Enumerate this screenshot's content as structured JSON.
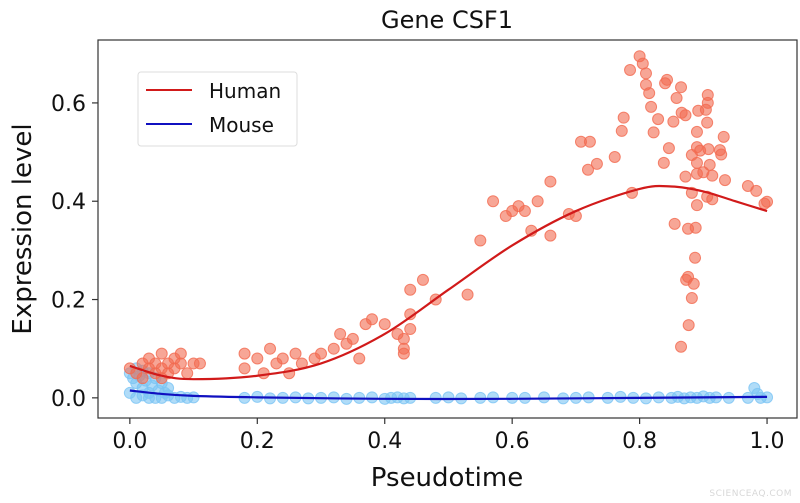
{
  "chart_data": {
    "type": "scatter",
    "title": "Gene CSF1",
    "xlabel": "Pseudotime",
    "ylabel": "Expression level",
    "xlim": [
      -0.05,
      1.047
    ],
    "ylim": [
      -0.041,
      0.728
    ],
    "xticks": [
      0.0,
      0.2,
      0.4,
      0.6,
      0.8,
      1.0
    ],
    "xtick_labels": [
      "0.0",
      "0.2",
      "0.4",
      "0.6",
      "0.8",
      "1.0"
    ],
    "yticks": [
      0.0,
      0.2,
      0.4,
      0.6
    ],
    "ytick_labels": [
      "0.0",
      "0.2",
      "0.4",
      "0.6"
    ],
    "grid": false,
    "legend_placement": "upper-left",
    "series": [
      {
        "name": "Human",
        "line_color": "#d11a1a",
        "point_color": "#f26a50",
        "points": [
          [
            0.0,
            0.06
          ],
          [
            0.01,
            0.05
          ],
          [
            0.02,
            0.07
          ],
          [
            0.03,
            0.06
          ],
          [
            0.03,
            0.08
          ],
          [
            0.04,
            0.05
          ],
          [
            0.04,
            0.07
          ],
          [
            0.05,
            0.09
          ],
          [
            0.05,
            0.06
          ],
          [
            0.06,
            0.07
          ],
          [
            0.06,
            0.05
          ],
          [
            0.07,
            0.08
          ],
          [
            0.07,
            0.06
          ],
          [
            0.08,
            0.07
          ],
          [
            0.09,
            0.05
          ],
          [
            0.1,
            0.07
          ],
          [
            0.11,
            0.07
          ],
          [
            0.02,
            0.04
          ],
          [
            0.05,
            0.04
          ],
          [
            0.08,
            0.09
          ],
          [
            0.18,
            0.09
          ],
          [
            0.18,
            0.06
          ],
          [
            0.2,
            0.08
          ],
          [
            0.21,
            0.05
          ],
          [
            0.22,
            0.1
          ],
          [
            0.23,
            0.07
          ],
          [
            0.24,
            0.08
          ],
          [
            0.25,
            0.05
          ],
          [
            0.26,
            0.09
          ],
          [
            0.27,
            0.07
          ],
          [
            0.29,
            0.08
          ],
          [
            0.3,
            0.09
          ],
          [
            0.32,
            0.1
          ],
          [
            0.33,
            0.13
          ],
          [
            0.34,
            0.11
          ],
          [
            0.35,
            0.12
          ],
          [
            0.36,
            0.08
          ],
          [
            0.37,
            0.15
          ],
          [
            0.38,
            0.16
          ],
          [
            0.4,
            0.15
          ],
          [
            0.42,
            0.13
          ],
          [
            0.43,
            0.1
          ],
          [
            0.43,
            0.12
          ],
          [
            0.43,
            0.09
          ],
          [
            0.44,
            0.14
          ],
          [
            0.44,
            0.17
          ],
          [
            0.44,
            0.22
          ],
          [
            0.46,
            0.24
          ],
          [
            0.48,
            0.2
          ],
          [
            0.53,
            0.21
          ],
          [
            0.55,
            0.32
          ],
          [
            0.57,
            0.4
          ],
          [
            0.59,
            0.37
          ],
          [
            0.6,
            0.38
          ],
          [
            0.61,
            0.39
          ],
          [
            0.62,
            0.38
          ],
          [
            0.63,
            0.34
          ],
          [
            0.64,
            0.4
          ],
          [
            0.66,
            0.44
          ],
          [
            0.66,
            0.33
          ],
          [
            0.7,
            0.37
          ],
          [
            0.8,
            0.695
          ],
          [
            0.805,
            0.68
          ],
          [
            0.785,
            0.667
          ],
          [
            0.81,
            0.66
          ],
          [
            0.81,
            0.637
          ],
          [
            0.815,
            0.62
          ],
          [
            0.843,
            0.647
          ],
          [
            0.84,
            0.64
          ],
          [
            0.865,
            0.632
          ],
          [
            0.858,
            0.61
          ],
          [
            0.907,
            0.616
          ],
          [
            0.907,
            0.6
          ],
          [
            0.818,
            0.592
          ],
          [
            0.829,
            0.567
          ],
          [
            0.775,
            0.57
          ],
          [
            0.772,
            0.543
          ],
          [
            0.822,
            0.54
          ],
          [
            0.853,
            0.562
          ],
          [
            0.866,
            0.58
          ],
          [
            0.872,
            0.575
          ],
          [
            0.892,
            0.584
          ],
          [
            0.904,
            0.586
          ],
          [
            0.906,
            0.56
          ],
          [
            0.89,
            0.541
          ],
          [
            0.932,
            0.531
          ],
          [
            0.708,
            0.521
          ],
          [
            0.722,
            0.521
          ],
          [
            0.761,
            0.49
          ],
          [
            0.733,
            0.476
          ],
          [
            0.719,
            0.464
          ],
          [
            0.846,
            0.508
          ],
          [
            0.838,
            0.478
          ],
          [
            0.89,
            0.51
          ],
          [
            0.882,
            0.494
          ],
          [
            0.895,
            0.503
          ],
          [
            0.908,
            0.506
          ],
          [
            0.926,
            0.504
          ],
          [
            0.928,
            0.495
          ],
          [
            0.89,
            0.478
          ],
          [
            0.91,
            0.474
          ],
          [
            0.872,
            0.45
          ],
          [
            0.89,
            0.456
          ],
          [
            0.9,
            0.459
          ],
          [
            0.914,
            0.452
          ],
          [
            0.934,
            0.443
          ],
          [
            0.97,
            0.431
          ],
          [
            0.983,
            0.421
          ],
          [
            1.0,
            0.399
          ],
          [
            0.996,
            0.395
          ],
          [
            0.788,
            0.417
          ],
          [
            0.882,
            0.417
          ],
          [
            0.906,
            0.409
          ],
          [
            0.914,
            0.404
          ],
          [
            0.89,
            0.392
          ],
          [
            0.689,
            0.374
          ],
          [
            0.855,
            0.354
          ],
          [
            0.876,
            0.344
          ],
          [
            0.888,
            0.346
          ],
          [
            0.887,
            0.285
          ],
          [
            0.876,
            0.246
          ],
          [
            0.873,
            0.24
          ],
          [
            0.885,
            0.232
          ],
          [
            0.882,
            0.203
          ],
          [
            0.877,
            0.148
          ],
          [
            0.865,
            0.104
          ]
        ],
        "fit": [
          [
            0,
            0.065
          ],
          [
            0.05,
            0.045
          ],
          [
            0.1,
            0.038
          ],
          [
            0.2,
            0.045
          ],
          [
            0.3,
            0.07
          ],
          [
            0.4,
            0.13
          ],
          [
            0.5,
            0.22
          ],
          [
            0.6,
            0.31
          ],
          [
            0.7,
            0.38
          ],
          [
            0.8,
            0.425
          ],
          [
            0.85,
            0.43
          ],
          [
            0.9,
            0.42
          ],
          [
            0.95,
            0.4
          ],
          [
            1.0,
            0.38
          ]
        ]
      },
      {
        "name": "Mouse",
        "line_color": "#1010c0",
        "point_color": "#7cc4f4",
        "points": [
          [
            0.0,
            0.05
          ],
          [
            0.005,
            0.04
          ],
          [
            0.01,
            0.06
          ],
          [
            0.01,
            0.03
          ],
          [
            0.015,
            0.045
          ],
          [
            0.02,
            0.055
          ],
          [
            0.02,
            0.02
          ],
          [
            0.025,
            0.035
          ],
          [
            0.03,
            0.05
          ],
          [
            0.03,
            0.01
          ],
          [
            0.035,
            0.025
          ],
          [
            0.04,
            0.04
          ],
          [
            0.045,
            0.015
          ],
          [
            0.05,
            0.03
          ],
          [
            0.055,
            0.01
          ],
          [
            0.06,
            0.02
          ],
          [
            0.0,
            0.01
          ],
          [
            0.01,
            0.0
          ],
          [
            0.02,
            0.005
          ],
          [
            0.03,
            0.0
          ],
          [
            0.04,
            0.0
          ],
          [
            0.05,
            0.0
          ],
          [
            0.06,
            0.005
          ],
          [
            0.07,
            0.0
          ],
          [
            0.08,
            0.002
          ],
          [
            0.09,
            0.0
          ],
          [
            0.1,
            0.001
          ],
          [
            0.18,
            0.0
          ],
          [
            0.2,
            0.002
          ],
          [
            0.22,
            -0.001
          ],
          [
            0.24,
            0.0
          ],
          [
            0.26,
            0.001
          ],
          [
            0.28,
            -0.001
          ],
          [
            0.3,
            0.0
          ],
          [
            0.32,
            0.001
          ],
          [
            0.34,
            -0.002
          ],
          [
            0.36,
            0.0
          ],
          [
            0.38,
            0.001
          ],
          [
            0.4,
            -0.002
          ],
          [
            0.41,
            0.0
          ],
          [
            0.42,
            0.001
          ],
          [
            0.43,
            -0.001
          ],
          [
            0.44,
            0.0
          ],
          [
            0.48,
            0.0
          ],
          [
            0.5,
            0.001
          ],
          [
            0.52,
            -0.001
          ],
          [
            0.55,
            0.0
          ],
          [
            0.57,
            0.001
          ],
          [
            0.6,
            0.0
          ],
          [
            0.62,
            0.0
          ],
          [
            0.65,
            0.001
          ],
          [
            0.68,
            -0.001
          ],
          [
            0.7,
            0.0
          ],
          [
            0.72,
            0.001
          ],
          [
            0.75,
            0.0
          ],
          [
            0.77,
            0.002
          ],
          [
            0.79,
            0.0
          ],
          [
            0.81,
            -0.001
          ],
          [
            0.83,
            0.001
          ],
          [
            0.85,
            0.0
          ],
          [
            0.86,
            0.002
          ],
          [
            0.87,
            -0.001
          ],
          [
            0.88,
            0.001
          ],
          [
            0.89,
            0.0
          ],
          [
            0.9,
            0.003
          ],
          [
            0.91,
            0.0
          ],
          [
            0.92,
            0.001
          ],
          [
            0.94,
            0.0
          ],
          [
            0.97,
            0.0
          ],
          [
            0.98,
            0.02
          ],
          [
            0.985,
            0.008
          ],
          [
            0.99,
            0.0
          ],
          [
            1.0,
            0.001
          ]
        ],
        "fit": [
          [
            0,
            0.015
          ],
          [
            0.05,
            0.008
          ],
          [
            0.1,
            0.004
          ],
          [
            0.2,
            0.001
          ],
          [
            0.4,
            -0.002
          ],
          [
            0.6,
            -0.002
          ],
          [
            0.8,
            0.0
          ],
          [
            1.0,
            0.002
          ]
        ]
      }
    ]
  },
  "watermark": "SCIENCEAQ.COM"
}
